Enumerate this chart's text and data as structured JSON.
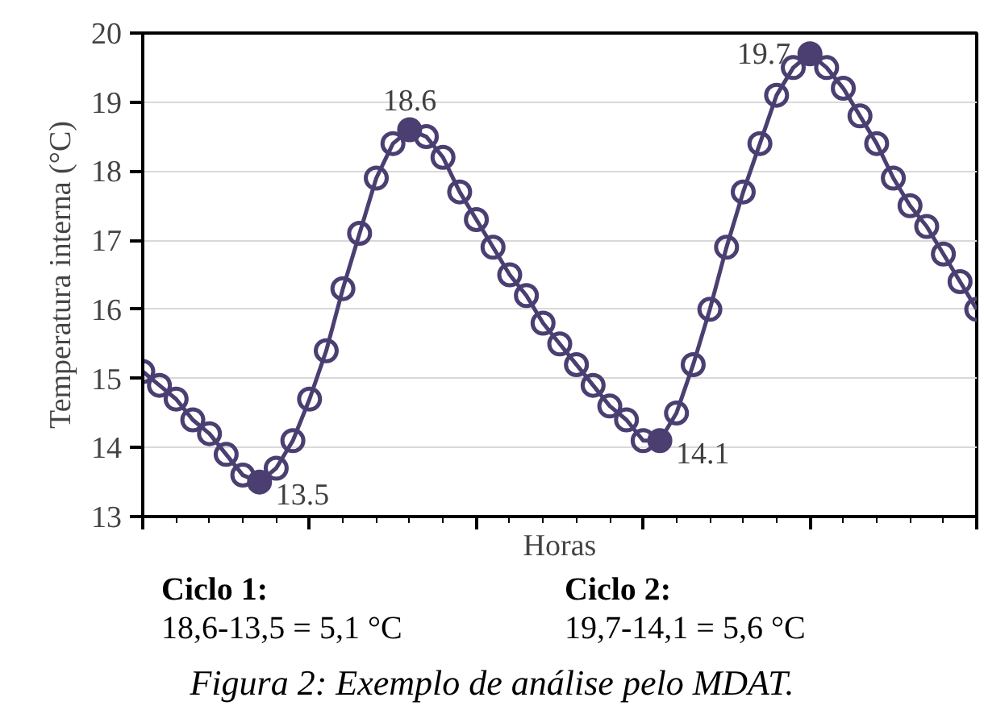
{
  "chart_data": {
    "type": "line",
    "ylabel": "Temperatura interna (°C)",
    "xlabel": "Horas",
    "categories": [
      null,
      null,
      null,
      null,
      null,
      null,
      null,
      null,
      null,
      null,
      null,
      null,
      null,
      null,
      null,
      null,
      null,
      null,
      null,
      null,
      null,
      null,
      null,
      null,
      null,
      null,
      null,
      null,
      null,
      null,
      null,
      null,
      null,
      null,
      null,
      null,
      null,
      null,
      null,
      null,
      null,
      null,
      null,
      null,
      null,
      null,
      null,
      null,
      null,
      null,
      null
    ],
    "series": [
      {
        "color": "#4b3f72",
        "marker": "circle",
        "values": [
          15.1,
          14.9,
          14.7,
          14.4,
          14.2,
          13.9,
          13.6,
          13.5,
          13.7,
          14.1,
          14.7,
          15.4,
          16.3,
          17.1,
          17.9,
          18.4,
          18.6,
          18.5,
          18.2,
          17.7,
          17.3,
          16.9,
          16.5,
          16.2,
          15.8,
          15.5,
          15.2,
          14.9,
          14.6,
          14.4,
          14.1,
          14.1,
          14.5,
          15.2,
          16.0,
          16.9,
          17.7,
          18.4,
          19.1,
          19.5,
          19.7,
          19.5,
          19.2,
          18.8,
          18.4,
          17.9,
          17.5,
          17.2,
          16.8,
          16.4,
          16.0
        ]
      },
      {
        "type": "scatter",
        "color": "#4b3f72",
        "marker": "circle",
        "values": [
          null,
          null,
          null,
          null,
          null,
          null,
          null,
          13.5,
          null,
          null,
          null,
          null,
          null,
          null,
          null,
          null,
          18.6,
          null,
          null,
          null,
          null,
          null,
          null,
          null,
          null,
          null,
          null,
          null,
          null,
          null,
          null,
          14.1,
          null,
          null,
          null,
          null,
          null,
          null,
          null,
          null,
          19.7,
          null,
          null,
          null,
          null,
          null,
          null,
          null,
          null,
          null,
          null
        ]
      }
    ],
    "ylim": [
      13,
      20
    ],
    "yticks": [
      13,
      14,
      15,
      16,
      17,
      18,
      19,
      20
    ],
    "grid": "y",
    "annotations": [
      "13.5",
      "18.6",
      "14.1",
      "19.7",
      "Ciclo 1:",
      "18,6-13,5 = 5,1 °C",
      "Ciclo 2:",
      "19,7-14,1 = 5,6 °C",
      "Figura 2: Exemplo de análise pelo MDAT."
    ]
  }
}
